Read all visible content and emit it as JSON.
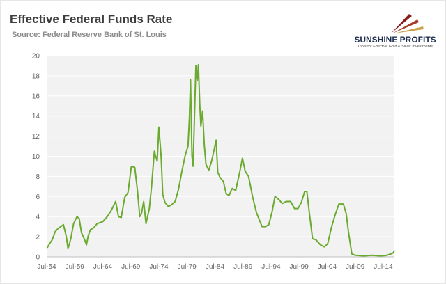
{
  "header": {
    "title": "Effective Federal Funds Rate",
    "subtitle": "Source: Federal Reserve Bank of St. Louis"
  },
  "brand": {
    "name": "SUNSHINE PROFITS",
    "tagline": "Tools for Effective Gold & Silver Investments",
    "logo_icon": "sun-rays-logo-icon",
    "colors": {
      "ray_dark": "#8b1a1a",
      "ray_light": "#c9a24a"
    }
  },
  "chart_data": {
    "type": "line",
    "title": "Effective Federal Funds Rate",
    "subtitle": "Source: Federal Reserve Bank of St. Louis",
    "xlabel": "",
    "ylabel": "",
    "x_range": [
      1954.5,
      2016.5
    ],
    "ylim": [
      0,
      20
    ],
    "y_ticks": [
      0,
      2,
      4,
      6,
      8,
      10,
      12,
      14,
      16,
      18,
      20
    ],
    "x_ticks": [
      {
        "label": "Jul-54",
        "x": 1954.5
      },
      {
        "label": "Jul-59",
        "x": 1959.5
      },
      {
        "label": "Jul-64",
        "x": 1964.5
      },
      {
        "label": "Jul-69",
        "x": 1969.5
      },
      {
        "label": "Jul-74",
        "x": 1974.5
      },
      {
        "label": "Jul-79",
        "x": 1979.5
      },
      {
        "label": "Jul-84",
        "x": 1984.5
      },
      {
        "label": "Jul-89",
        "x": 1989.5
      },
      {
        "label": "Jul-94",
        "x": 1994.5
      },
      {
        "label": "Jul-99",
        "x": 1999.5
      },
      {
        "label": "Jul-04",
        "x": 2004.5
      },
      {
        "label": "Jul-09",
        "x": 2009.5
      },
      {
        "label": "Jul-14",
        "x": 2014.5
      }
    ],
    "grid": true,
    "legend": "none",
    "series": [
      {
        "color": "#6aaa2e",
        "points": [
          [
            1954.5,
            0.8
          ],
          [
            1955.0,
            1.3
          ],
          [
            1955.5,
            1.7
          ],
          [
            1956.0,
            2.5
          ],
          [
            1956.5,
            2.8
          ],
          [
            1957.0,
            3.0
          ],
          [
            1957.5,
            3.2
          ],
          [
            1958.0,
            2.0
          ],
          [
            1958.3,
            0.8
          ],
          [
            1958.8,
            1.8
          ],
          [
            1959.3,
            3.3
          ],
          [
            1959.9,
            4.0
          ],
          [
            1960.3,
            3.8
          ],
          [
            1960.7,
            2.4
          ],
          [
            1961.2,
            1.8
          ],
          [
            1961.6,
            1.2
          ],
          [
            1961.9,
            2.1
          ],
          [
            1962.3,
            2.7
          ],
          [
            1962.9,
            2.9
          ],
          [
            1963.5,
            3.3
          ],
          [
            1964.5,
            3.5
          ],
          [
            1965.3,
            4.0
          ],
          [
            1966.0,
            4.6
          ],
          [
            1966.8,
            5.5
          ],
          [
            1967.3,
            4.0
          ],
          [
            1967.8,
            3.9
          ],
          [
            1968.4,
            5.9
          ],
          [
            1969.0,
            6.4
          ],
          [
            1969.6,
            9.0
          ],
          [
            1970.2,
            8.9
          ],
          [
            1970.7,
            6.5
          ],
          [
            1971.1,
            4.0
          ],
          [
            1971.4,
            4.3
          ],
          [
            1971.8,
            5.5
          ],
          [
            1972.2,
            3.3
          ],
          [
            1972.8,
            4.8
          ],
          [
            1973.2,
            7.0
          ],
          [
            1973.7,
            10.5
          ],
          [
            1974.2,
            9.5
          ],
          [
            1974.5,
            12.9
          ],
          [
            1974.9,
            10.0
          ],
          [
            1975.2,
            6.2
          ],
          [
            1975.6,
            5.4
          ],
          [
            1976.2,
            5.0
          ],
          [
            1976.8,
            5.2
          ],
          [
            1977.4,
            5.5
          ],
          [
            1978.0,
            6.7
          ],
          [
            1978.6,
            8.5
          ],
          [
            1979.2,
            10.1
          ],
          [
            1979.7,
            11.0
          ],
          [
            1979.95,
            13.8
          ],
          [
            1980.15,
            17.6
          ],
          [
            1980.4,
            10.0
          ],
          [
            1980.6,
            9.0
          ],
          [
            1980.9,
            15.0
          ],
          [
            1981.1,
            19.0
          ],
          [
            1981.35,
            17.5
          ],
          [
            1981.55,
            19.1
          ],
          [
            1981.8,
            15.1
          ],
          [
            1982.0,
            13.0
          ],
          [
            1982.3,
            14.5
          ],
          [
            1982.6,
            11.1
          ],
          [
            1982.9,
            9.2
          ],
          [
            1983.4,
            8.6
          ],
          [
            1983.9,
            9.5
          ],
          [
            1984.3,
            10.5
          ],
          [
            1984.7,
            11.6
          ],
          [
            1985.0,
            8.4
          ],
          [
            1985.4,
            7.9
          ],
          [
            1986.0,
            7.5
          ],
          [
            1986.5,
            6.3
          ],
          [
            1987.0,
            6.1
          ],
          [
            1987.6,
            6.8
          ],
          [
            1988.2,
            6.6
          ],
          [
            1988.9,
            8.4
          ],
          [
            1989.4,
            9.8
          ],
          [
            1989.9,
            8.5
          ],
          [
            1990.5,
            8.0
          ],
          [
            1991.2,
            6.0
          ],
          [
            1991.9,
            4.4
          ],
          [
            1992.4,
            3.7
          ],
          [
            1992.9,
            3.0
          ],
          [
            1993.5,
            3.0
          ],
          [
            1994.1,
            3.2
          ],
          [
            1994.7,
            4.5
          ],
          [
            1995.2,
            6.0
          ],
          [
            1995.9,
            5.7
          ],
          [
            1996.5,
            5.3
          ],
          [
            1997.2,
            5.5
          ],
          [
            1998.0,
            5.5
          ],
          [
            1998.7,
            4.8
          ],
          [
            1999.3,
            4.8
          ],
          [
            1999.9,
            5.4
          ],
          [
            2000.5,
            6.5
          ],
          [
            2000.9,
            6.5
          ],
          [
            2001.3,
            4.5
          ],
          [
            2001.9,
            1.8
          ],
          [
            2002.5,
            1.7
          ],
          [
            2003.3,
            1.2
          ],
          [
            2004.0,
            1.0
          ],
          [
            2004.6,
            1.3
          ],
          [
            2005.3,
            3.0
          ],
          [
            2006.0,
            4.3
          ],
          [
            2006.6,
            5.25
          ],
          [
            2007.4,
            5.25
          ],
          [
            2007.9,
            4.3
          ],
          [
            2008.3,
            2.5
          ],
          [
            2008.9,
            0.3
          ],
          [
            2009.5,
            0.15
          ],
          [
            2011.0,
            0.1
          ],
          [
            2012.5,
            0.15
          ],
          [
            2014.0,
            0.1
          ],
          [
            2015.0,
            0.13
          ],
          [
            2015.9,
            0.3
          ],
          [
            2016.3,
            0.4
          ],
          [
            2016.5,
            0.65
          ]
        ]
      }
    ]
  }
}
